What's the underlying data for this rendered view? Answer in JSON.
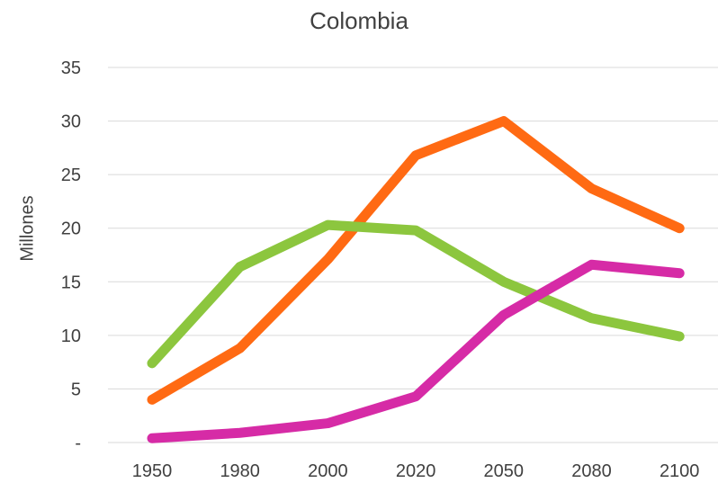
{
  "chart_data": {
    "type": "line",
    "title": "Colombia",
    "xlabel": "",
    "ylabel": "Millones",
    "categories": [
      "1950",
      "1980",
      "2000",
      "2020",
      "2050",
      "2080",
      "2100"
    ],
    "ylim": [
      0,
      35
    ],
    "yticks": [
      0,
      5,
      10,
      15,
      20,
      25,
      30,
      35
    ],
    "ytick_labels": [
      "-",
      "5",
      "10",
      "15",
      "20",
      "25",
      "30",
      "35"
    ],
    "grid": true,
    "legend": "none",
    "series": [
      {
        "color": "#FF6A13",
        "values": [
          4.0,
          8.8,
          17.1,
          26.8,
          30.0,
          23.7,
          20.0
        ]
      },
      {
        "color": "#8CC63E",
        "values": [
          7.4,
          16.4,
          20.3,
          19.8,
          15.0,
          11.6,
          9.9
        ]
      },
      {
        "color": "#D62BA6",
        "values": [
          0.4,
          0.9,
          1.8,
          4.3,
          11.9,
          16.6,
          15.8
        ]
      }
    ]
  }
}
